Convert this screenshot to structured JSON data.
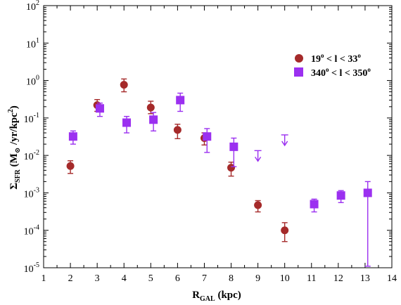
{
  "chart_data": {
    "type": "scatter",
    "title": "",
    "xlabel": {
      "main": "R",
      "sub": "GAL",
      "rest": " (kpc)"
    },
    "ylabel": {
      "main": "Σ",
      "sub": "SFR",
      "rest": " (M",
      "sun": "⊙",
      "rest2": " /yr/kpc",
      "sup": "2",
      "close": ")"
    },
    "x_range": [
      1,
      14
    ],
    "y_log": true,
    "y_range_log10": [
      -5,
      2
    ],
    "x_ticks": [
      1,
      2,
      3,
      4,
      5,
      6,
      7,
      8,
      9,
      10,
      11,
      12,
      13,
      14
    ],
    "y_ticks": [
      {
        "exp": -5,
        "base": "10",
        "sup": "-5"
      },
      {
        "exp": -4,
        "base": "10",
        "sup": "-4"
      },
      {
        "exp": -3,
        "base": "10",
        "sup": "-3"
      },
      {
        "exp": -2,
        "base": "10",
        "sup": "-2"
      },
      {
        "exp": -1,
        "base": "10",
        "sup": "-1"
      },
      {
        "exp": 0,
        "base": "10",
        "sup": "0"
      },
      {
        "exp": 1,
        "base": "10",
        "sup": "1"
      },
      {
        "exp": 2,
        "base": "10",
        "sup": "2"
      }
    ],
    "legend_position": "right",
    "series": [
      {
        "name": "19° < l < 33°",
        "label_parts": {
          "a": "19",
          "deg1": "o",
          "b": " < l < 33",
          "deg2": "o"
        },
        "color": "#a52a2a",
        "marker": "circle",
        "points": [
          {
            "x": 2,
            "y": 0.0052,
            "lo": 0.0033,
            "hi": 0.0072
          },
          {
            "x": 3,
            "y": 0.22,
            "lo": 0.15,
            "hi": 0.31
          },
          {
            "x": 4,
            "y": 0.77,
            "lo": 0.5,
            "hi": 1.1
          },
          {
            "x": 5,
            "y": 0.19,
            "lo": 0.13,
            "hi": 0.28
          },
          {
            "x": 6,
            "y": 0.048,
            "lo": 0.028,
            "hi": 0.068
          },
          {
            "x": 7,
            "y": 0.029,
            "lo": 0.019,
            "hi": 0.04
          },
          {
            "x": 8,
            "y": 0.0047,
            "lo": 0.0028,
            "hi": 0.0066
          },
          {
            "x": 9,
            "y": 0.00047,
            "lo": 0.00031,
            "hi": 0.00062
          },
          {
            "x": 10,
            "y": 0.0001,
            "lo": 5e-05,
            "hi": 0.00016
          }
        ]
      },
      {
        "name": "340° < l < 350°",
        "label_parts": {
          "a": "340",
          "deg1": "o",
          "b": " < l < 350",
          "deg2": "o"
        },
        "color": "#9b30f0",
        "marker": "square",
        "points": [
          {
            "x": 2.1,
            "y": 0.032,
            "lo": 0.02,
            "hi": 0.045
          },
          {
            "x": 3.1,
            "y": 0.18,
            "lo": 0.11,
            "hi": 0.25
          },
          {
            "x": 4.1,
            "y": 0.075,
            "lo": 0.04,
            "hi": 0.11
          },
          {
            "x": 5.1,
            "y": 0.09,
            "lo": 0.045,
            "hi": 0.14
          },
          {
            "x": 6.1,
            "y": 0.3,
            "lo": 0.15,
            "hi": 0.46
          },
          {
            "x": 7.1,
            "y": 0.032,
            "lo": 0.012,
            "hi": 0.052
          },
          {
            "x": 8.1,
            "y": 0.017,
            "lo": 0.005,
            "hi": 0.029
          },
          {
            "x": 11.1,
            "y": 0.0005,
            "lo": 0.00031,
            "hi": 0.00068
          },
          {
            "x": 12.1,
            "y": 0.00085,
            "lo": 0.00055,
            "hi": 0.00115
          },
          {
            "x": 13.1,
            "y": 0.001,
            "lo": 1.1e-05,
            "hi": 0.002
          }
        ],
        "upper_limits": [
          {
            "x": 9,
            "y": 0.0095
          },
          {
            "x": 10,
            "y": 0.025
          }
        ]
      }
    ]
  }
}
